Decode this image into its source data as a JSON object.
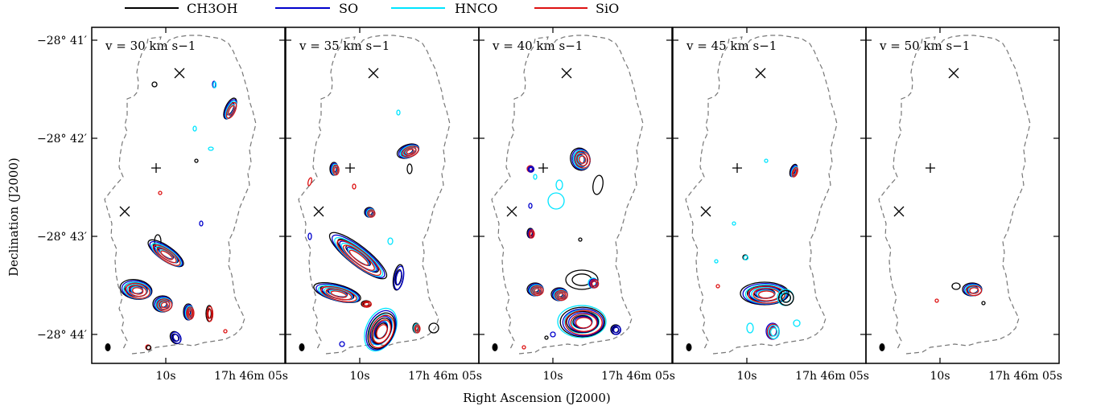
{
  "chart_data": {
    "type": "contour-channel-maps",
    "legend": {
      "placement": "top-center",
      "entries": [
        {
          "label": "CH3OH",
          "color": "#000000"
        },
        {
          "label": "SO",
          "color": "#0000cc"
        },
        {
          "label": "HNCO",
          "color": "#00e5ff"
        },
        {
          "label": "SiO",
          "color": "#dd1111"
        }
      ]
    },
    "xlabel": "Right Ascension (J2000)",
    "ylabel": "Declination (J2000)",
    "y_ticks": [
      "−28° 41′",
      "−28° 42′",
      "−28° 43′",
      "−28° 44′"
    ],
    "x_ticks": [
      "10s",
      "17h 46m 05s"
    ],
    "panels": [
      {
        "label": "v = 30 km s−1",
        "velocity": 30
      },
      {
        "label": "v = 35 km s−1",
        "velocity": 35
      },
      {
        "label": "v = 40 km s−1",
        "velocity": 40
      },
      {
        "label": "v = 45 km s−1",
        "velocity": 45
      },
      {
        "label": "v = 50 km s−1",
        "velocity": 50
      }
    ],
    "markers": [
      {
        "symbol": "x",
        "name": "cross-north"
      },
      {
        "symbol": "+",
        "name": "plus-center"
      },
      {
        "symbol": "x",
        "name": "cross-west"
      }
    ],
    "outline_style": "dashed gray",
    "beam": "filled ellipse, lower-left"
  }
}
